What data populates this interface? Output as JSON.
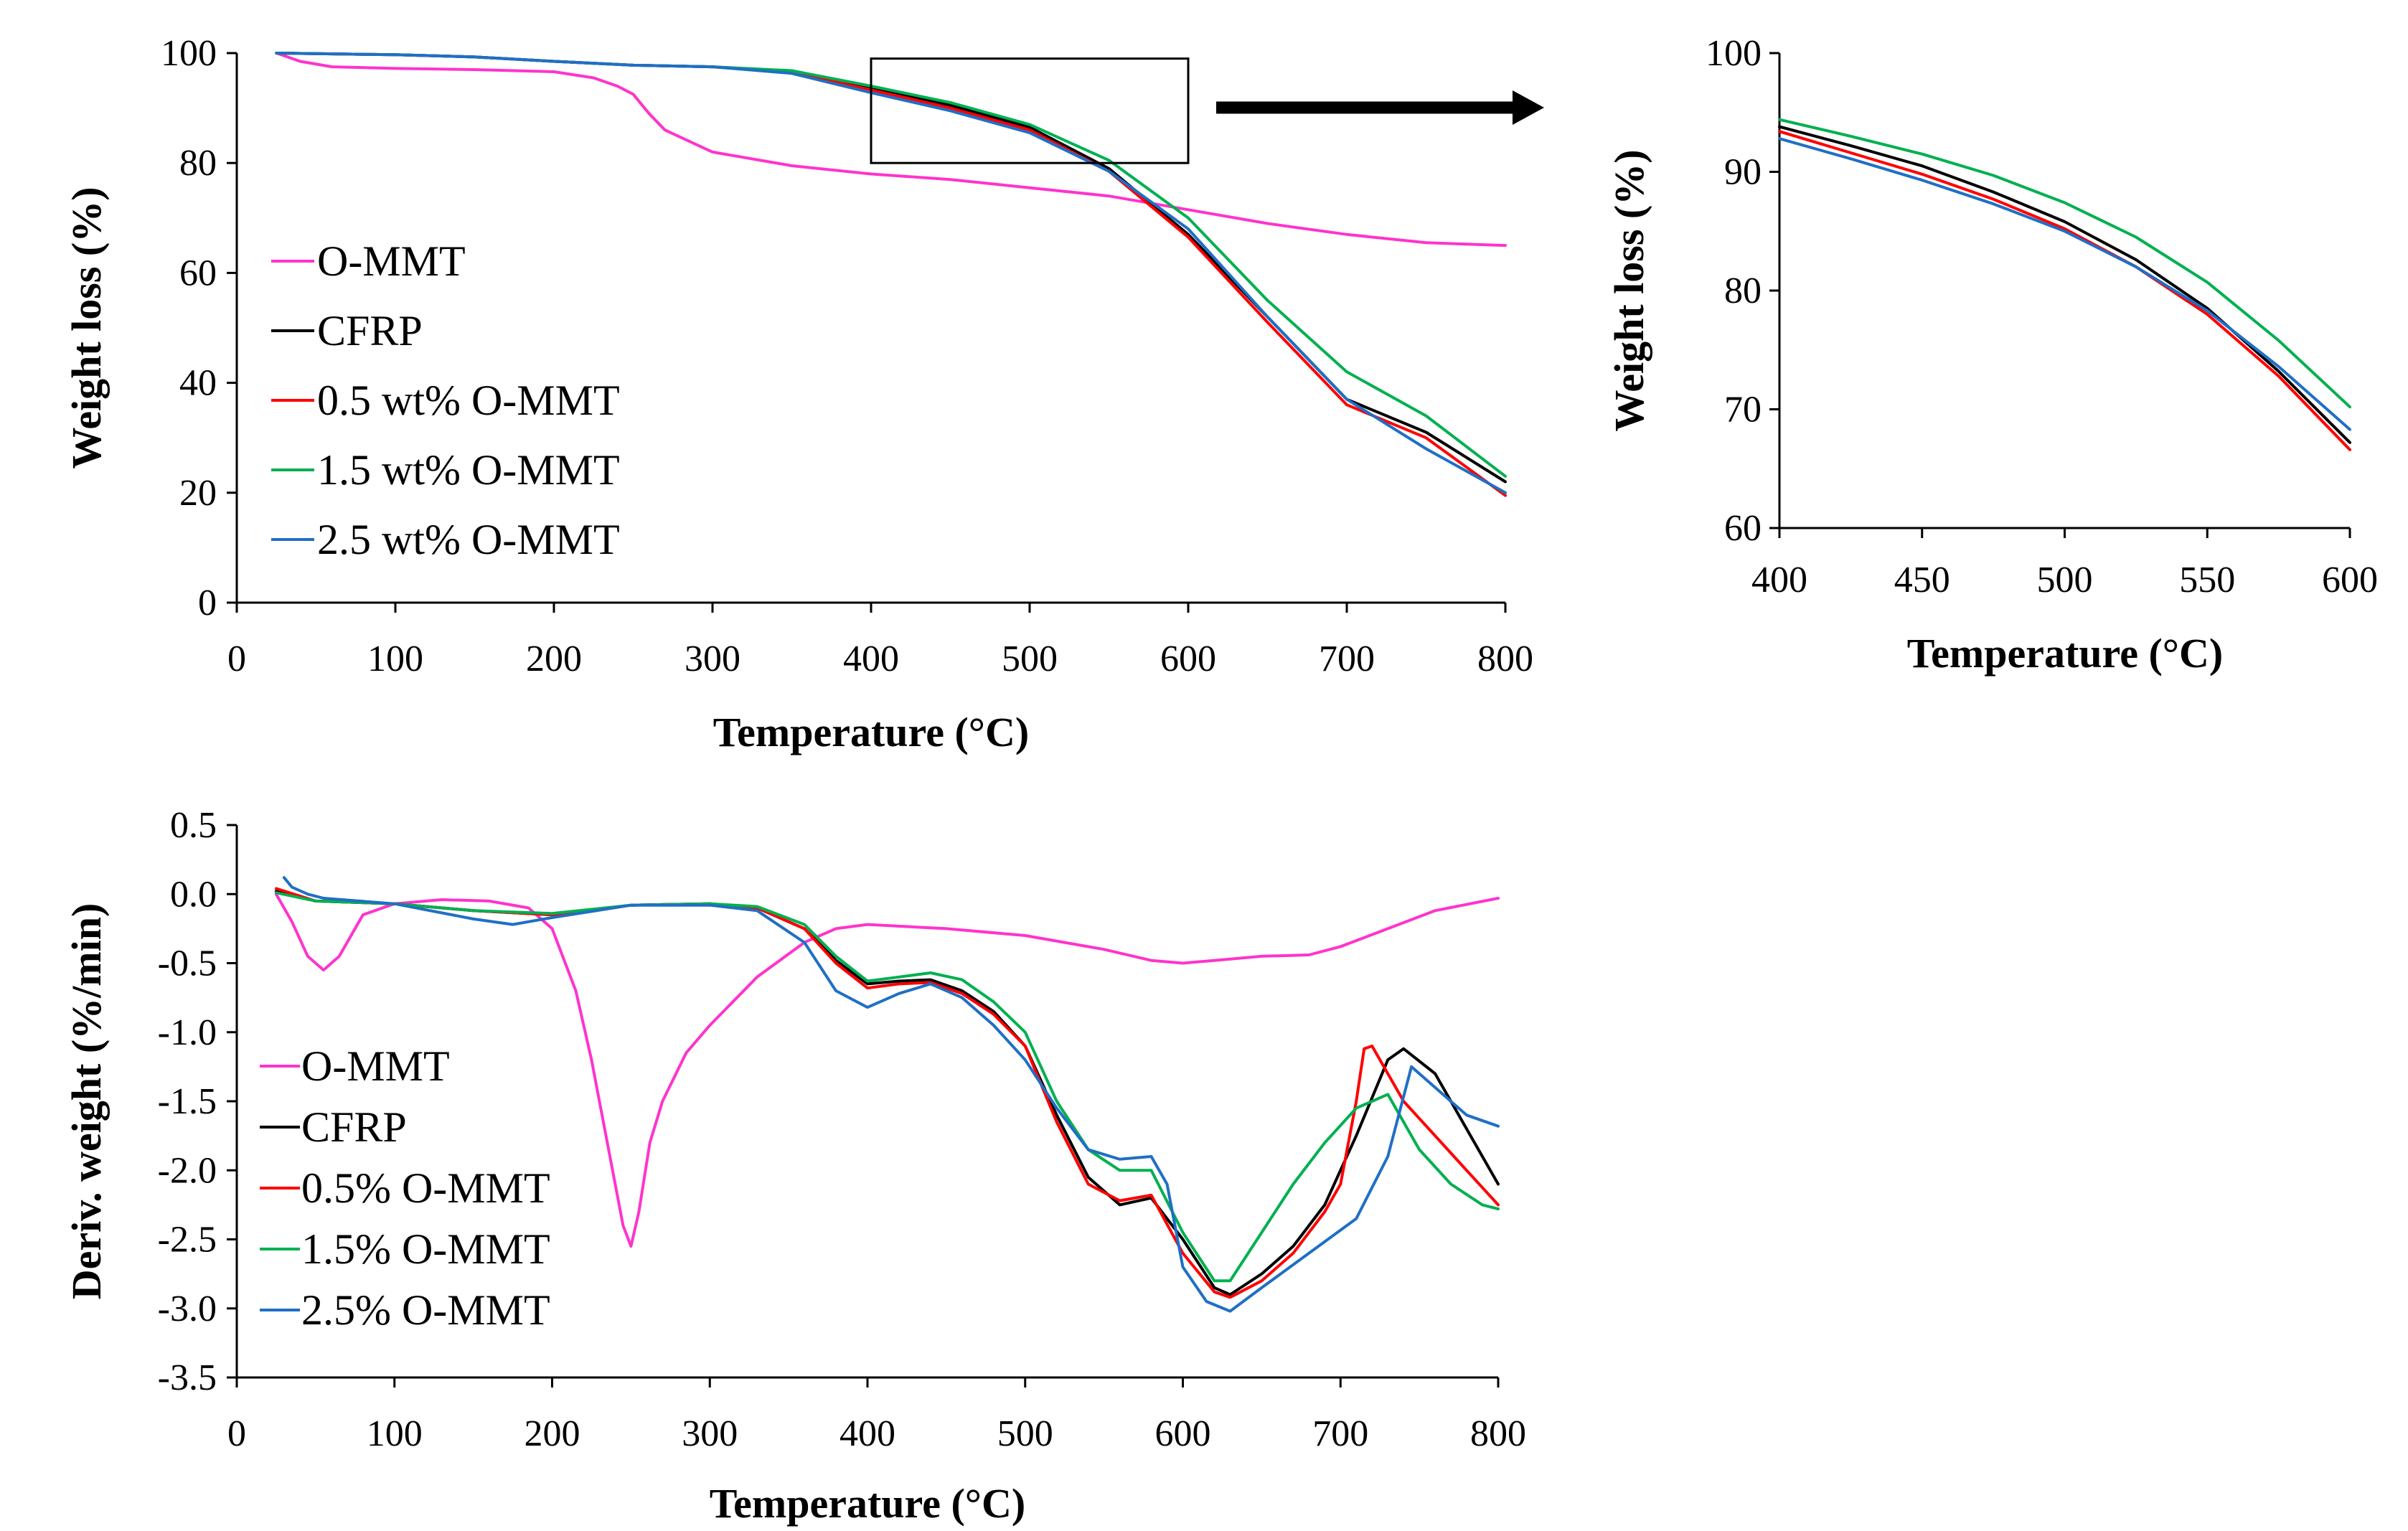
{
  "colors": {
    "O-MMT": "#ff33cc",
    "CFRP": "#000000",
    "0.5": "#ff0000",
    "1.5": "#00b050",
    "2.5": "#1f6fc5"
  },
  "chart_data": [
    {
      "id": "tga_main",
      "type": "line",
      "title": "",
      "xlabel": "Temperature (°C)",
      "ylabel": "Weight loss (%)",
      "xlim": [
        0,
        800
      ],
      "ylim": [
        0,
        100
      ],
      "xticks": [
        "0",
        "100",
        "200",
        "300",
        "400",
        "500",
        "600",
        "700",
        "800"
      ],
      "yticks": [
        "0",
        "20",
        "40",
        "60",
        "80",
        "100"
      ],
      "legend_position": "left-middle",
      "zoom_box": {
        "x_range": [
          400,
          600
        ],
        "y_range": [
          80,
          99
        ]
      },
      "series": [
        {
          "name": "O-MMT",
          "color_key": "O-MMT",
          "x": [
            25,
            40,
            60,
            100,
            150,
            200,
            225,
            240,
            250,
            260,
            270,
            300,
            350,
            400,
            450,
            500,
            550,
            600,
            650,
            700,
            750,
            800
          ],
          "y": [
            100,
            98.5,
            97.5,
            97.2,
            97,
            96.6,
            95.5,
            94,
            92.5,
            89,
            86,
            82,
            79.5,
            78,
            77,
            75.5,
            74,
            71.5,
            69,
            67,
            65.5,
            65
          ]
        },
        {
          "name": "CFRP",
          "color_key": "CFRP",
          "x": [
            25,
            100,
            150,
            200,
            250,
            300,
            350,
            400,
            450,
            500,
            550,
            600,
            650,
            700,
            750,
            800
          ],
          "y": [
            100,
            99.7,
            99.3,
            98.5,
            97.8,
            97.5,
            96.5,
            93.5,
            90.5,
            86.5,
            79,
            67,
            52,
            37,
            31,
            22
          ]
        },
        {
          "name": "0.5 wt% O-MMT",
          "color_key": "0.5",
          "x": [
            25,
            100,
            150,
            200,
            250,
            300,
            350,
            400,
            450,
            500,
            550,
            600,
            650,
            700,
            750,
            800
          ],
          "y": [
            100,
            99.7,
            99.3,
            98.5,
            97.8,
            97.5,
            96.5,
            93.3,
            90,
            86,
            78.5,
            66.5,
            51,
            36,
            30,
            19.5
          ]
        },
        {
          "name": "1.5 wt% O-MMT",
          "color_key": "1.5",
          "x": [
            25,
            100,
            150,
            200,
            250,
            300,
            350,
            400,
            450,
            500,
            550,
            600,
            650,
            700,
            750,
            800
          ],
          "y": [
            100,
            99.7,
            99.3,
            98.5,
            97.8,
            97.5,
            96.8,
            94,
            91,
            87,
            80.5,
            70,
            55,
            42,
            34,
            23
          ]
        },
        {
          "name": "2.5 wt% O-MMT",
          "color_key": "2.5",
          "x": [
            25,
            100,
            150,
            200,
            250,
            300,
            350,
            400,
            450,
            500,
            550,
            600,
            650,
            700,
            750,
            800
          ],
          "y": [
            100,
            99.7,
            99.3,
            98.5,
            97.8,
            97.5,
            96.3,
            92.8,
            89.5,
            85.5,
            78.5,
            68,
            52,
            37,
            28,
            20
          ]
        }
      ]
    },
    {
      "id": "tga_zoom",
      "type": "line",
      "title": "",
      "xlabel": "Temperature (°C)",
      "ylabel": "Weight loss (%)",
      "xlim": [
        400,
        600
      ],
      "ylim": [
        60,
        100
      ],
      "xticks": [
        "400",
        "450",
        "500",
        "550",
        "600"
      ],
      "yticks": [
        "60",
        "70",
        "80",
        "90",
        "100"
      ],
      "series": [
        {
          "name": "CFRP",
          "color_key": "CFRP",
          "x": [
            400,
            425,
            450,
            475,
            500,
            525,
            550,
            575,
            600
          ],
          "y": [
            93.8,
            92.2,
            90.5,
            88.3,
            85.8,
            82.6,
            78.5,
            73.2,
            67.2
          ]
        },
        {
          "name": "0.5 wt% O-MMT",
          "color_key": "0.5",
          "x": [
            400,
            425,
            450,
            475,
            500,
            525,
            550,
            575,
            600
          ],
          "y": [
            93.4,
            91.6,
            89.8,
            87.7,
            85.2,
            82.0,
            78.0,
            72.8,
            66.6
          ]
        },
        {
          "name": "1.5 wt% O-MMT",
          "color_key": "1.5",
          "x": [
            400,
            425,
            450,
            475,
            500,
            525,
            550,
            575,
            600
          ],
          "y": [
            94.4,
            93.0,
            91.5,
            89.7,
            87.4,
            84.5,
            80.7,
            75.8,
            70.2
          ]
        },
        {
          "name": "2.5 wt% O-MMT",
          "color_key": "2.5",
          "x": [
            400,
            425,
            450,
            475,
            500,
            525,
            550,
            575,
            600
          ],
          "y": [
            92.8,
            91.1,
            89.3,
            87.3,
            85.0,
            82.0,
            78.3,
            73.6,
            68.3
          ]
        }
      ]
    },
    {
      "id": "dtg",
      "type": "line",
      "title": "",
      "xlabel": "Temperature (°C)",
      "ylabel": "Deriv. weight (%/min)",
      "xlim": [
        0,
        800
      ],
      "ylim": [
        -3.5,
        0.5
      ],
      "xticks": [
        "0",
        "100",
        "200",
        "300",
        "400",
        "500",
        "600",
        "700",
        "800"
      ],
      "yticks": [
        "-3.5",
        "-3.0",
        "-2.5",
        "-2.0",
        "-1.5",
        "-1.0",
        "-0.5",
        "0.0",
        "0.5"
      ],
      "legend_position": "left-bottom",
      "series": [
        {
          "name": "O-MMT",
          "color_key": "O-MMT",
          "x": [
            25,
            35,
            45,
            55,
            65,
            80,
            100,
            130,
            160,
            185,
            200,
            215,
            225,
            235,
            245,
            250,
            255,
            262,
            270,
            285,
            300,
            330,
            360,
            380,
            400,
            450,
            500,
            550,
            580,
            600,
            620,
            650,
            680,
            700,
            730,
            760,
            800
          ],
          "y": [
            0,
            -0.2,
            -0.45,
            -0.55,
            -0.45,
            -0.15,
            -0.07,
            -0.04,
            -0.05,
            -0.1,
            -0.25,
            -0.7,
            -1.2,
            -1.8,
            -2.4,
            -2.55,
            -2.3,
            -1.8,
            -1.5,
            -1.15,
            -0.95,
            -0.6,
            -0.35,
            -0.25,
            -0.22,
            -0.25,
            -0.3,
            -0.4,
            -0.48,
            -0.5,
            -0.48,
            -0.45,
            -0.44,
            -0.38,
            -0.25,
            -0.12,
            -0.03
          ]
        },
        {
          "name": "CFRP",
          "color_key": "CFRP",
          "x": [
            25,
            50,
            100,
            150,
            200,
            250,
            300,
            330,
            360,
            380,
            400,
            420,
            440,
            460,
            480,
            500,
            520,
            540,
            560,
            580,
            600,
            620,
            630,
            650,
            670,
            690,
            710,
            730,
            740,
            760,
            780,
            800
          ],
          "y": [
            0.02,
            -0.05,
            -0.07,
            -0.12,
            -0.15,
            -0.08,
            -0.07,
            -0.1,
            -0.25,
            -0.48,
            -0.65,
            -0.63,
            -0.62,
            -0.7,
            -0.85,
            -1.1,
            -1.6,
            -2.05,
            -2.25,
            -2.2,
            -2.5,
            -2.85,
            -2.9,
            -2.75,
            -2.55,
            -2.25,
            -1.75,
            -1.2,
            -1.12,
            -1.3,
            -1.7,
            -2.1
          ]
        },
        {
          "name": "0.5% O-MMT",
          "color_key": "0.5",
          "x": [
            25,
            50,
            100,
            150,
            200,
            250,
            300,
            330,
            360,
            380,
            400,
            420,
            440,
            460,
            480,
            500,
            520,
            540,
            560,
            580,
            600,
            620,
            630,
            650,
            670,
            690,
            700,
            710,
            715,
            720,
            730,
            740,
            760,
            780,
            800
          ],
          "y": [
            0.04,
            -0.05,
            -0.07,
            -0.12,
            -0.15,
            -0.08,
            -0.07,
            -0.1,
            -0.25,
            -0.5,
            -0.68,
            -0.65,
            -0.64,
            -0.72,
            -0.87,
            -1.1,
            -1.65,
            -2.1,
            -2.22,
            -2.18,
            -2.6,
            -2.88,
            -2.92,
            -2.8,
            -2.6,
            -2.3,
            -2.1,
            -1.5,
            -1.12,
            -1.1,
            -1.3,
            -1.5,
            -1.75,
            -2.0,
            -2.25
          ]
        },
        {
          "name": "1.5% O-MMT",
          "color_key": "1.5",
          "x": [
            25,
            50,
            100,
            150,
            200,
            250,
            300,
            330,
            360,
            380,
            400,
            420,
            440,
            460,
            480,
            500,
            520,
            540,
            560,
            580,
            600,
            620,
            630,
            650,
            670,
            690,
            710,
            730,
            750,
            770,
            790,
            800
          ],
          "y": [
            0.01,
            -0.05,
            -0.07,
            -0.12,
            -0.14,
            -0.08,
            -0.07,
            -0.09,
            -0.22,
            -0.45,
            -0.63,
            -0.6,
            -0.57,
            -0.62,
            -0.78,
            -1.0,
            -1.5,
            -1.85,
            -2.0,
            -2.0,
            -2.45,
            -2.8,
            -2.8,
            -2.45,
            -2.1,
            -1.8,
            -1.55,
            -1.45,
            -1.85,
            -2.1,
            -2.25,
            -2.28
          ]
        },
        {
          "name": "2.5% O-MMT",
          "color_key": "2.5",
          "x": [
            30,
            35,
            45,
            55,
            100,
            150,
            175,
            200,
            250,
            300,
            330,
            360,
            380,
            400,
            420,
            440,
            460,
            480,
            500,
            520,
            540,
            560,
            580,
            590,
            600,
            615,
            630,
            650,
            680,
            710,
            730,
            745,
            760,
            780,
            800
          ],
          "y": [
            0.12,
            0.05,
            0.0,
            -0.03,
            -0.07,
            -0.18,
            -0.22,
            -0.17,
            -0.08,
            -0.08,
            -0.12,
            -0.35,
            -0.7,
            -0.82,
            -0.72,
            -0.65,
            -0.75,
            -0.95,
            -1.2,
            -1.55,
            -1.85,
            -1.92,
            -1.9,
            -2.1,
            -2.7,
            -2.95,
            -3.02,
            -2.85,
            -2.6,
            -2.35,
            -1.9,
            -1.25,
            -1.4,
            -1.6,
            -1.68
          ]
        }
      ]
    }
  ]
}
